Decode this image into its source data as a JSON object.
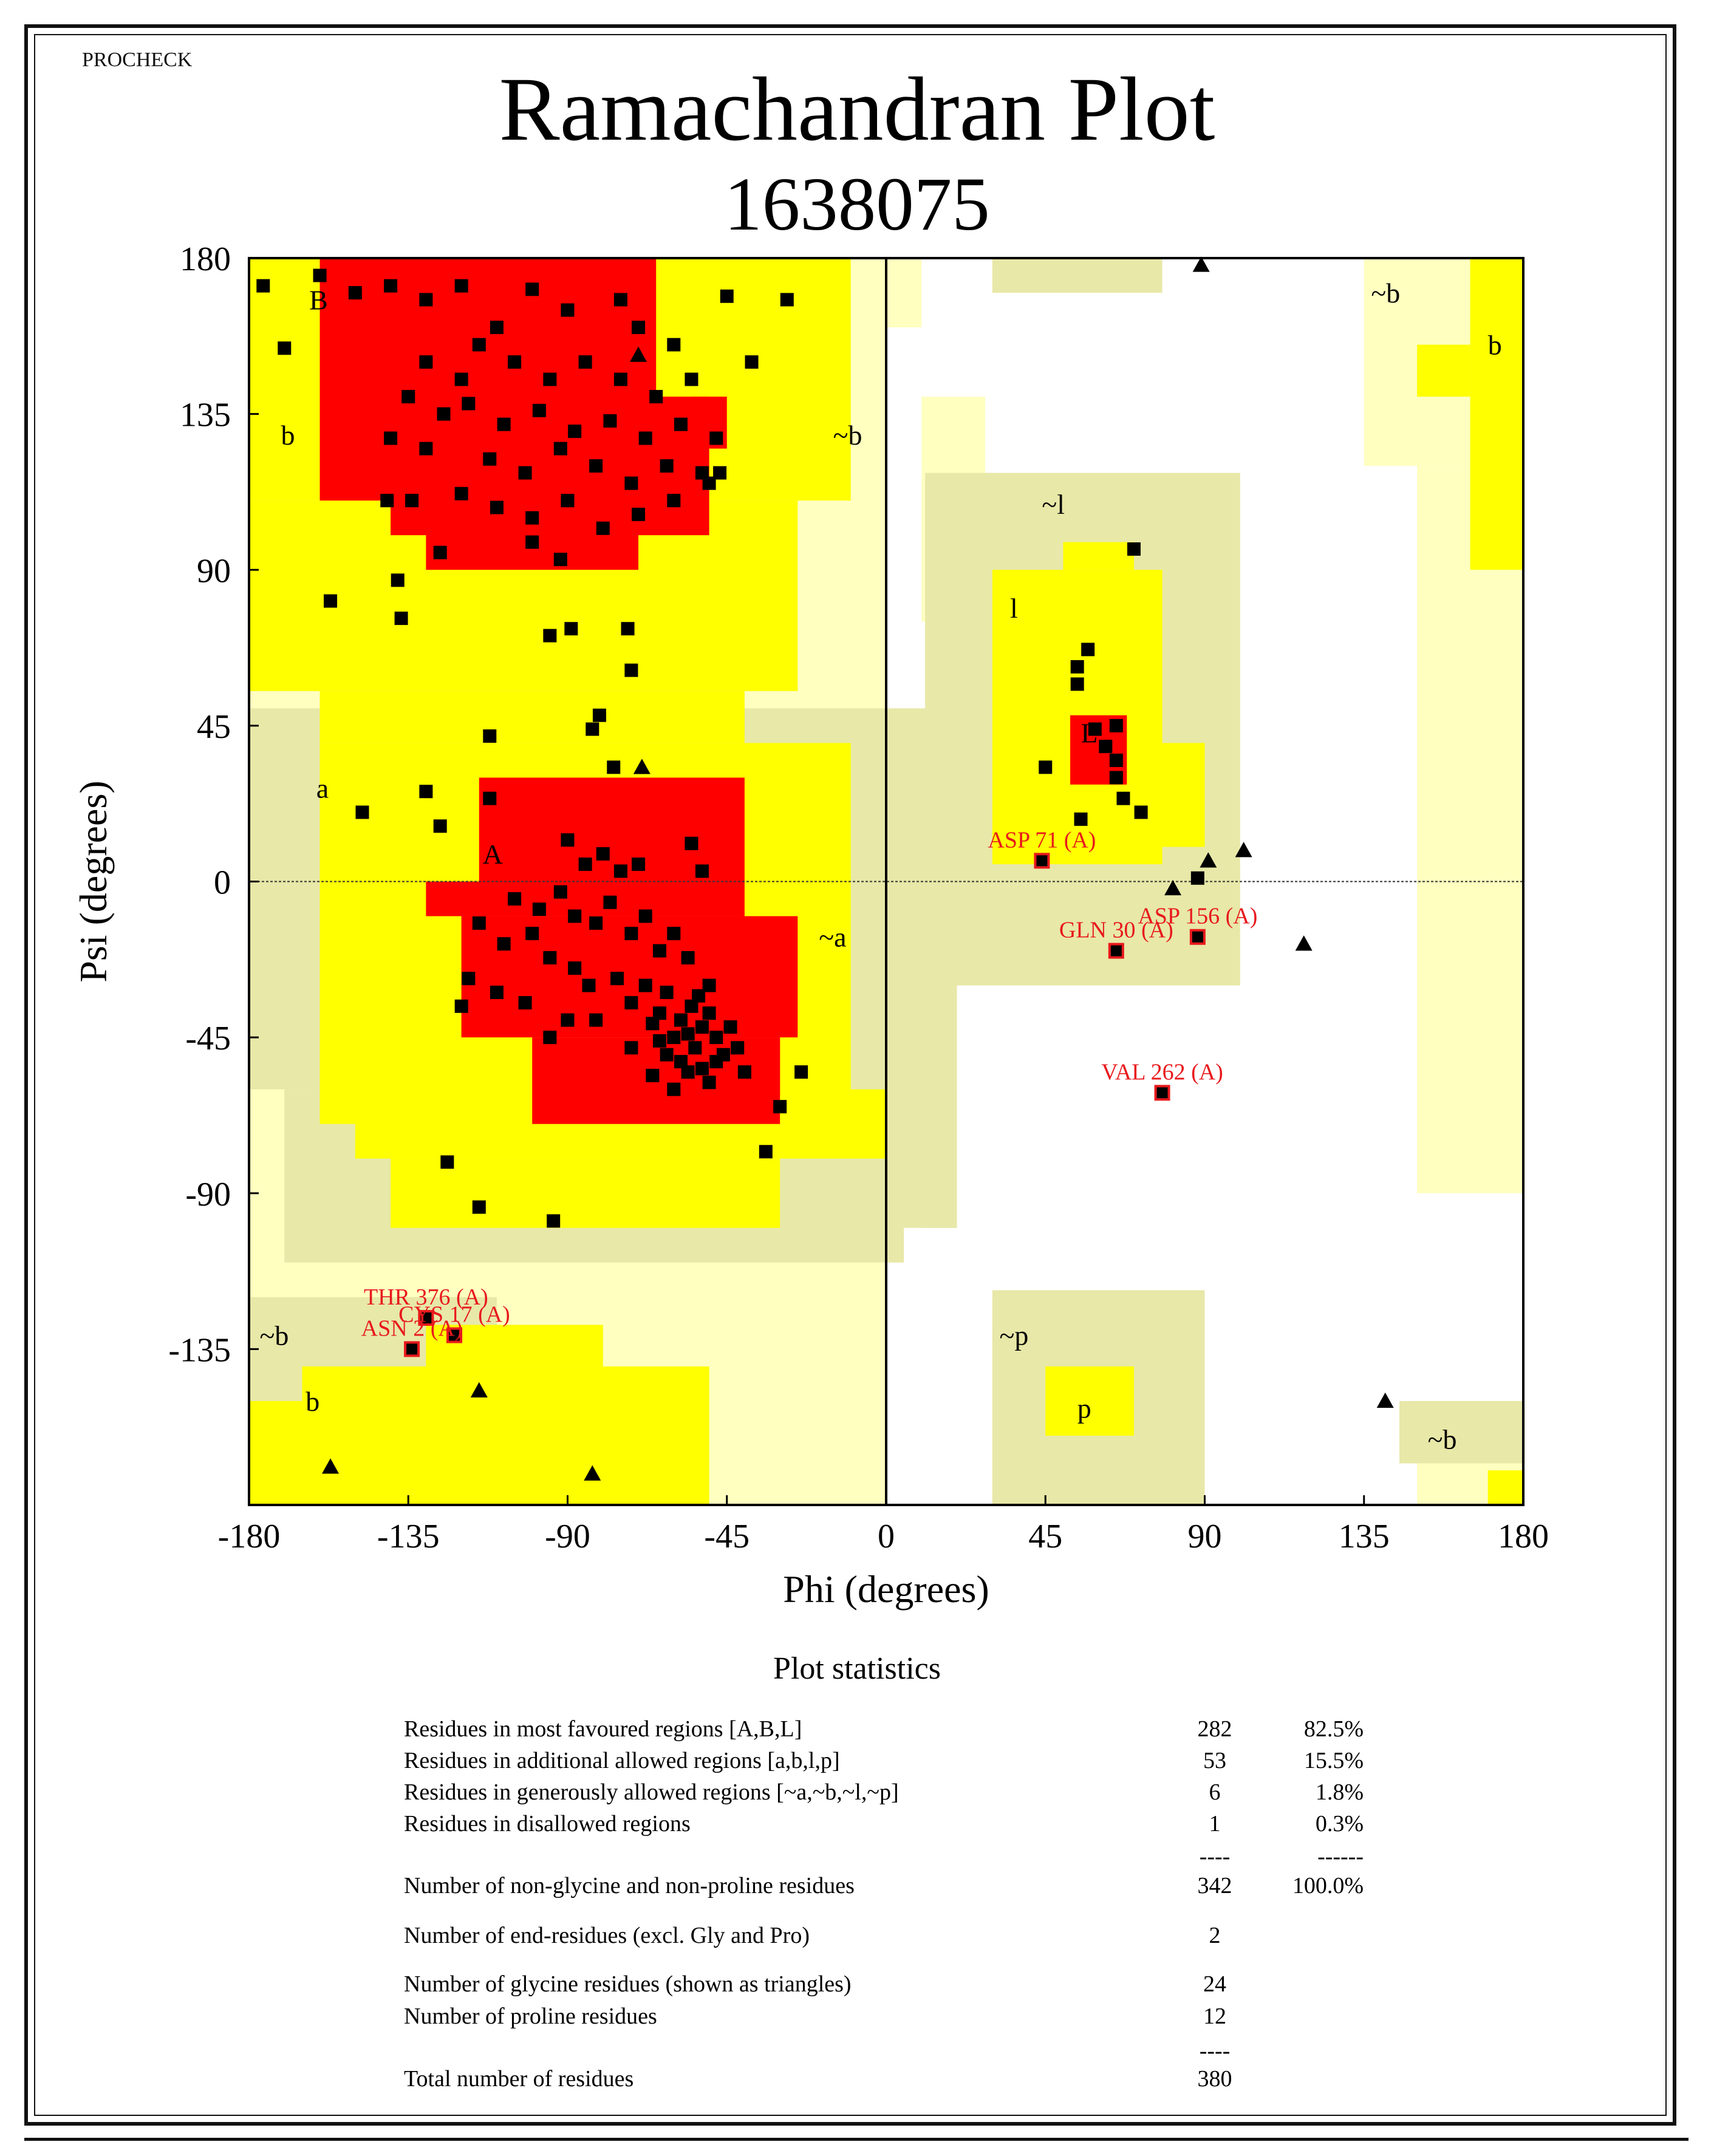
{
  "header": {
    "program": "PROCHECK",
    "title": "Ramachandran Plot",
    "subtitle": "1638075"
  },
  "colors": {
    "core": "#ff0000",
    "allowed": "#ffff00",
    "generous": "#e8e8a8",
    "light": "#ffffc0",
    "point": "#000000",
    "outlier": "#e8191c"
  },
  "chart_data": {
    "type": "scatter",
    "xlabel": "Phi (degrees)",
    "ylabel": "Psi (degrees)",
    "xlim": [
      -180,
      180
    ],
    "ylim": [
      -180,
      180
    ],
    "xticks": [
      -180,
      -135,
      -90,
      -45,
      0,
      45,
      90,
      135,
      180
    ],
    "yticks": [
      180,
      135,
      90,
      45,
      0,
      -45,
      -90,
      -135
    ],
    "region_labels": [
      {
        "text": "B",
        "phi": -163,
        "psi": 168
      },
      {
        "text": "b",
        "phi": -171,
        "psi": 129
      },
      {
        "text": "~b",
        "phi": -15,
        "psi": 129
      },
      {
        "text": "~l",
        "phi": 44,
        "psi": 109
      },
      {
        "text": "l",
        "phi": 35,
        "psi": 79
      },
      {
        "text": "L",
        "phi": 55,
        "psi": 43
      },
      {
        "text": "a",
        "phi": -161,
        "psi": 27
      },
      {
        "text": "A",
        "phi": -114,
        "psi": 8
      },
      {
        "text": "~a",
        "phi": -19,
        "psi": -16
      },
      {
        "text": "~b",
        "phi": 137,
        "psi": 170
      },
      {
        "text": "b",
        "phi": 170,
        "psi": 155
      },
      {
        "text": "~b",
        "phi": -177,
        "psi": -131
      },
      {
        "text": "b",
        "phi": -164,
        "psi": -150
      },
      {
        "text": "~p",
        "phi": 32,
        "psi": -131
      },
      {
        "text": "p",
        "phi": 54,
        "psi": -152
      },
      {
        "text": "~b",
        "phi": 153,
        "psi": -161
      }
    ],
    "outliers": [
      {
        "label": "ASP 71 (A)",
        "phi": 44,
        "psi": 6
      },
      {
        "label": "GLN 30 (A)",
        "phi": 65,
        "psi": -20
      },
      {
        "label": "ASP 156 (A)",
        "phi": 88,
        "psi": -16
      },
      {
        "label": "VAL 262 (A)",
        "phi": 78,
        "psi": -61
      },
      {
        "label": "THR 376 (A)",
        "phi": -130,
        "psi": -126
      },
      {
        "label": "CYS 17 (A)",
        "phi": -122,
        "psi": -131
      },
      {
        "label": "ASN 2 (A)",
        "phi": -134,
        "psi": -135
      }
    ],
    "glycine_points": [
      [
        89,
        178
      ],
      [
        -70,
        152
      ],
      [
        -69,
        33
      ],
      [
        81,
        -2
      ],
      [
        91,
        6
      ],
      [
        101,
        9
      ],
      [
        118,
        -18
      ],
      [
        141,
        -150
      ],
      [
        -115,
        -147
      ],
      [
        -157,
        -169
      ],
      [
        -83,
        -171
      ]
    ],
    "residue_points": [
      [
        -176,
        172
      ],
      [
        -170,
        154
      ],
      [
        -160,
        175
      ],
      [
        -150,
        170
      ],
      [
        -140,
        172
      ],
      [
        -130,
        168
      ],
      [
        -120,
        172
      ],
      [
        -100,
        171
      ],
      [
        -75,
        168
      ],
      [
        -45,
        169
      ],
      [
        -110,
        160
      ],
      [
        -90,
        165
      ],
      [
        -70,
        160
      ],
      [
        -60,
        155
      ],
      [
        -130,
        150
      ],
      [
        -120,
        145
      ],
      [
        -115,
        155
      ],
      [
        -105,
        150
      ],
      [
        -95,
        145
      ],
      [
        -85,
        150
      ],
      [
        -75,
        145
      ],
      [
        -65,
        140
      ],
      [
        -55,
        145
      ],
      [
        -135,
        140
      ],
      [
        -125,
        135
      ],
      [
        -118,
        138
      ],
      [
        -108,
        132
      ],
      [
        -98,
        136
      ],
      [
        -88,
        130
      ],
      [
        -78,
        133
      ],
      [
        -68,
        128
      ],
      [
        -58,
        132
      ],
      [
        -48,
        128
      ],
      [
        -140,
        128
      ],
      [
        -130,
        125
      ],
      [
        -112,
        122
      ],
      [
        -102,
        118
      ],
      [
        -92,
        125
      ],
      [
        -82,
        120
      ],
      [
        -72,
        115
      ],
      [
        -62,
        120
      ],
      [
        -52,
        118
      ],
      [
        -120,
        112
      ],
      [
        -110,
        108
      ],
      [
        -100,
        105
      ],
      [
        -90,
        110
      ],
      [
        -80,
        102
      ],
      [
        -70,
        106
      ],
      [
        -60,
        110
      ],
      [
        -50,
        115
      ],
      [
        -47,
        118
      ],
      [
        -100,
        98
      ],
      [
        -92,
        93
      ],
      [
        -126,
        95
      ],
      [
        -38,
        150
      ],
      [
        -28,
        168
      ],
      [
        -141,
        110
      ],
      [
        -134,
        110
      ],
      [
        -157,
        81
      ],
      [
        -138,
        87
      ],
      [
        -137,
        76
      ],
      [
        -95,
        71
      ],
      [
        -89,
        73
      ],
      [
        -73,
        73
      ],
      [
        -72,
        61
      ],
      [
        -81,
        48
      ],
      [
        -83,
        44
      ],
      [
        -77,
        33
      ],
      [
        -112,
        42
      ],
      [
        -112,
        24
      ],
      [
        -130,
        26
      ],
      [
        -148,
        20
      ],
      [
        -126,
        16
      ],
      [
        -55,
        11
      ],
      [
        -52,
        3
      ],
      [
        -90,
        12
      ],
      [
        -85,
        5
      ],
      [
        -80,
        8
      ],
      [
        -75,
        3
      ],
      [
        -70,
        5
      ],
      [
        -105,
        -5
      ],
      [
        -98,
        -8
      ],
      [
        -92,
        -3
      ],
      [
        -88,
        -10
      ],
      [
        -82,
        -12
      ],
      [
        -78,
        -6
      ],
      [
        -72,
        -15
      ],
      [
        -68,
        -10
      ],
      [
        -64,
        -20
      ],
      [
        -60,
        -15
      ],
      [
        -56,
        -22
      ],
      [
        -115,
        -12
      ],
      [
        -108,
        -18
      ],
      [
        -100,
        -15
      ],
      [
        -95,
        -22
      ],
      [
        -88,
        -25
      ],
      [
        -84,
        -30
      ],
      [
        -76,
        -28
      ],
      [
        -72,
        -35
      ],
      [
        -68,
        -30
      ],
      [
        -64,
        -38
      ],
      [
        -62,
        -32
      ],
      [
        -58,
        -40
      ],
      [
        -56,
        -44
      ],
      [
        -54,
        -48
      ],
      [
        -52,
        -42
      ],
      [
        -50,
        -38
      ],
      [
        -48,
        -45
      ],
      [
        -46,
        -50
      ],
      [
        -60,
        -45
      ],
      [
        -62,
        -50
      ],
      [
        -64,
        -46
      ],
      [
        -66,
        -41
      ],
      [
        -58,
        -52
      ],
      [
        -56,
        -55
      ],
      [
        -52,
        -54
      ],
      [
        -50,
        -58
      ],
      [
        -48,
        -52
      ],
      [
        -55,
        -36
      ],
      [
        -53,
        -33
      ],
      [
        -50,
        -30
      ],
      [
        -44,
        -42
      ],
      [
        -42,
        -48
      ],
      [
        -40,
        -55
      ],
      [
        -82,
        -40
      ],
      [
        -90,
        -40
      ],
      [
        -102,
        -35
      ],
      [
        -95,
        -45
      ],
      [
        -118,
        -28
      ],
      [
        -120,
        -36
      ],
      [
        -110,
        -32
      ],
      [
        -60,
        -60
      ],
      [
        -66,
        -56
      ],
      [
        -72,
        -48
      ],
      [
        -124,
        -81
      ],
      [
        -115,
        -94
      ],
      [
        -94,
        -98
      ],
      [
        -30,
        -65
      ],
      [
        -24,
        -55
      ],
      [
        -34,
        -78
      ],
      [
        45,
        33
      ],
      [
        54,
        62
      ],
      [
        54,
        57
      ],
      [
        55,
        18
      ],
      [
        65,
        45
      ],
      [
        65,
        30
      ],
      [
        65,
        35
      ],
      [
        67,
        24
      ],
      [
        70,
        96
      ],
      [
        72,
        20
      ],
      [
        88,
        1
      ],
      [
        59,
        44
      ],
      [
        62,
        39
      ],
      [
        57,
        67
      ]
    ]
  },
  "stats": {
    "title": "Plot statistics",
    "rows": [
      {
        "label": "Residues in most favoured regions  [A,B,L]",
        "count": "282",
        "pct": "82.5%"
      },
      {
        "label": "Residues in additional allowed regions  [a,b,l,p]",
        "count": "53",
        "pct": "15.5%"
      },
      {
        "label": "Residues in generously allowed regions  [~a,~b,~l,~p]",
        "count": "6",
        "pct": "1.8%"
      },
      {
        "label": "Residues in disallowed regions",
        "count": "1",
        "pct": "0.3%"
      },
      {
        "label": "",
        "count": "----",
        "pct": "------"
      },
      {
        "label": "Number of non-glycine and non-proline residues",
        "count": "342",
        "pct": "100.0%"
      },
      {
        "label": "Number of end-residues (excl. Gly and Pro)",
        "count": "2",
        "pct": ""
      },
      {
        "label": "Number of glycine residues (shown as triangles)",
        "count": "24",
        "pct": ""
      },
      {
        "label": "Number of proline residues",
        "count": "12",
        "pct": ""
      },
      {
        "label": "",
        "count": "----",
        "pct": ""
      },
      {
        "label": "Total number of residues",
        "count": "380",
        "pct": ""
      }
    ]
  }
}
